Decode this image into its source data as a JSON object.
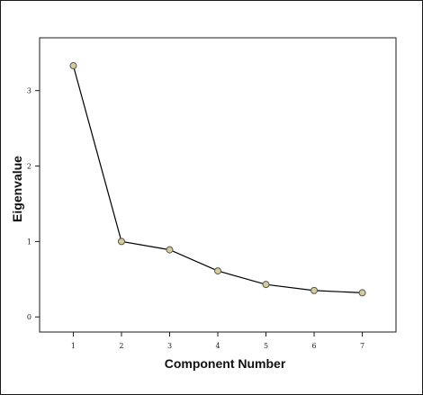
{
  "chart_data": {
    "type": "line",
    "title": "",
    "xlabel": "Component Number",
    "ylabel": "Eigenvalue",
    "x": [
      1,
      2,
      3,
      4,
      5,
      6,
      7
    ],
    "series": [
      {
        "values": [
          3.33,
          1.0,
          0.89,
          0.61,
          0.43,
          0.35,
          0.32
        ]
      }
    ],
    "x_ticks": [
      "1",
      "2",
      "3",
      "4",
      "5",
      "6",
      "7"
    ],
    "y_ticks": [
      "0",
      "1",
      "2",
      "3"
    ],
    "xlim": [
      0.3,
      7.7
    ],
    "ylim": [
      -0.2,
      3.7
    ],
    "grid": false,
    "legend": "none",
    "colors": {
      "line": "#000000",
      "marker_fill": "#d6cc99",
      "marker_edge": "#555555",
      "frame": "#1a1a1a"
    }
  }
}
